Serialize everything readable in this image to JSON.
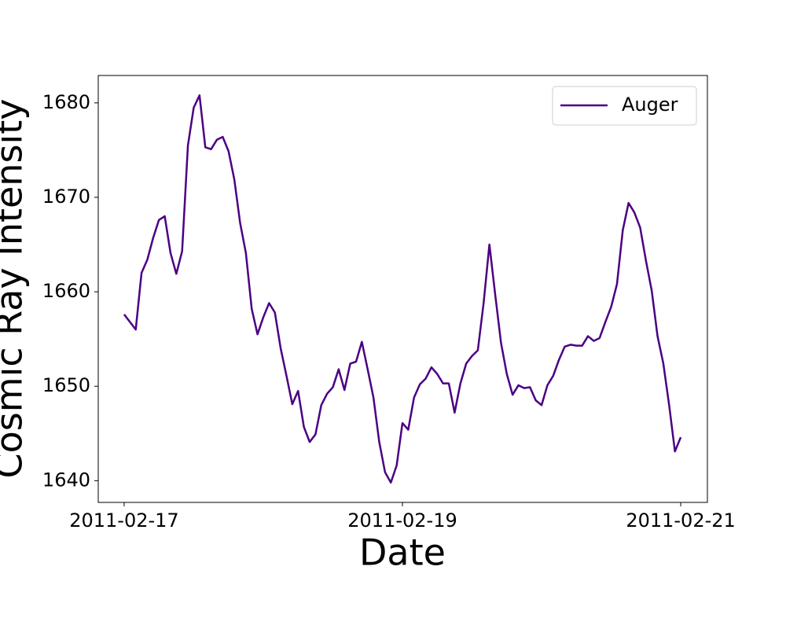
{
  "chart_data": {
    "type": "line",
    "xlabel": "Date",
    "ylabel": "Cosmic Ray Intensity",
    "x": [
      "2011-02-17T00:00",
      "2011-02-17T01:00",
      "2011-02-17T02:00",
      "2011-02-17T03:00",
      "2011-02-17T04:00",
      "2011-02-17T05:00",
      "2011-02-17T06:00",
      "2011-02-17T07:00",
      "2011-02-17T08:00",
      "2011-02-17T09:00",
      "2011-02-17T10:00",
      "2011-02-17T11:00",
      "2011-02-17T12:00",
      "2011-02-17T13:00",
      "2011-02-17T14:00",
      "2011-02-17T15:00",
      "2011-02-17T16:00",
      "2011-02-17T17:00",
      "2011-02-17T18:00",
      "2011-02-17T19:00",
      "2011-02-17T20:00",
      "2011-02-17T21:00",
      "2011-02-17T22:00",
      "2011-02-17T23:00",
      "2011-02-18T00:00",
      "2011-02-18T01:00",
      "2011-02-18T02:00",
      "2011-02-18T03:00",
      "2011-02-18T04:00",
      "2011-02-18T05:00",
      "2011-02-18T06:00",
      "2011-02-18T07:00",
      "2011-02-18T08:00",
      "2011-02-18T09:00",
      "2011-02-18T10:00",
      "2011-02-18T11:00",
      "2011-02-18T12:00",
      "2011-02-18T13:00",
      "2011-02-18T14:00",
      "2011-02-18T15:00",
      "2011-02-18T16:00",
      "2011-02-18T17:00",
      "2011-02-18T18:00",
      "2011-02-18T19:00",
      "2011-02-18T20:00",
      "2011-02-18T21:00",
      "2011-02-18T22:00",
      "2011-02-18T23:00",
      "2011-02-19T00:00",
      "2011-02-19T01:00",
      "2011-02-19T02:00",
      "2011-02-19T03:00",
      "2011-02-19T04:00",
      "2011-02-19T05:00",
      "2011-02-19T06:00",
      "2011-02-19T07:00",
      "2011-02-19T08:00",
      "2011-02-19T09:00",
      "2011-02-19T10:00",
      "2011-02-19T11:00",
      "2011-02-19T12:00",
      "2011-02-19T13:00",
      "2011-02-19T14:00",
      "2011-02-19T15:00",
      "2011-02-19T16:00",
      "2011-02-19T17:00",
      "2011-02-19T18:00",
      "2011-02-19T19:00",
      "2011-02-19T20:00",
      "2011-02-19T21:00",
      "2011-02-19T22:00",
      "2011-02-19T23:00",
      "2011-02-20T00:00",
      "2011-02-20T01:00",
      "2011-02-20T02:00",
      "2011-02-20T03:00",
      "2011-02-20T04:00",
      "2011-02-20T05:00",
      "2011-02-20T06:00",
      "2011-02-20T07:00",
      "2011-02-20T08:00",
      "2011-02-20T09:00",
      "2011-02-20T10:00",
      "2011-02-20T11:00",
      "2011-02-20T12:00",
      "2011-02-20T13:00",
      "2011-02-20T14:00",
      "2011-02-20T15:00",
      "2011-02-20T16:00",
      "2011-02-20T17:00",
      "2011-02-20T18:00",
      "2011-02-20T19:00",
      "2011-02-20T20:00",
      "2011-02-20T21:00",
      "2011-02-20T22:00",
      "2011-02-20T23:00",
      "2011-02-21T00:00"
    ],
    "series": [
      {
        "name": "Auger",
        "color": "#4b0082",
        "values": [
          1657.6,
          1656.8,
          1656.0,
          1662.0,
          1663.4,
          1665.7,
          1667.6,
          1668.0,
          1664.1,
          1661.9,
          1664.3,
          1675.5,
          1679.5,
          1680.8,
          1675.3,
          1675.1,
          1676.1,
          1676.4,
          1674.9,
          1671.9,
          1667.3,
          1664.1,
          1658.2,
          1655.5,
          1657.3,
          1658.8,
          1657.8,
          1654.0,
          1651.1,
          1648.1,
          1649.5,
          1645.7,
          1644.1,
          1644.9,
          1648.0,
          1649.2,
          1649.9,
          1651.8,
          1649.6,
          1652.4,
          1652.6,
          1654.7,
          1651.8,
          1648.8,
          1644.1,
          1640.9,
          1639.8,
          1641.6,
          1646.1,
          1645.4,
          1648.8,
          1650.2,
          1650.8,
          1652.0,
          1651.3,
          1650.3,
          1650.3,
          1647.2,
          1650.3,
          1652.4,
          1653.2,
          1653.8,
          1658.8,
          1665.0,
          1659.7,
          1654.6,
          1651.3,
          1649.1,
          1650.1,
          1649.8,
          1649.9,
          1648.5,
          1648.0,
          1650.1,
          1651.1,
          1652.8,
          1654.2,
          1654.4,
          1654.3,
          1654.3,
          1655.3,
          1654.8,
          1655.1,
          1656.8,
          1658.4,
          1660.8,
          1666.5,
          1669.4,
          1668.4,
          1666.8,
          1663.3,
          1660.1,
          1655.3,
          1652.4,
          1648.0,
          1643.1,
          1644.6
        ]
      }
    ],
    "xlim": [
      "2011-02-16T19:32",
      "2011-02-21T04:36"
    ],
    "xticks": [
      "2011-02-17",
      "2011-02-19",
      "2011-02-21"
    ],
    "ylim": [
      1637.7,
      1682.9
    ],
    "yticks": [
      1640,
      1650,
      1660,
      1670,
      1680
    ],
    "legend": "upper right",
    "grid": false
  }
}
